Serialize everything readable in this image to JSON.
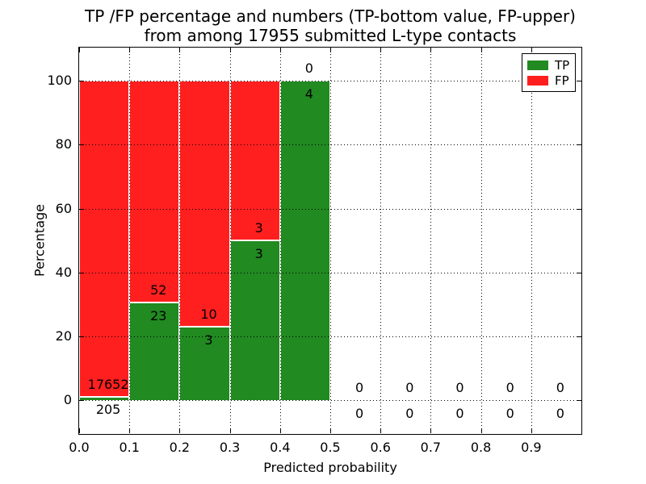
{
  "chart_data": {
    "type": "bar",
    "title_line1": "TP /FP percentage and numbers (TP-bottom value, FP-upper)",
    "title_line2": "from among 17955 submitted L-type contacts",
    "xlabel": "Predicted probability",
    "ylabel": "Percentage",
    "total_submitted": 17955,
    "xlim": [
      0.0,
      1.0
    ],
    "ylim": [
      -10.3,
      110.4
    ],
    "xtick_values": [
      0.0,
      0.1,
      0.2,
      0.3,
      0.4,
      0.5,
      0.6,
      0.7,
      0.8,
      0.9
    ],
    "xtick_labels": [
      "0.0",
      "0.1",
      "0.2",
      "0.3",
      "0.4",
      "0.5",
      "0.6",
      "0.7",
      "0.8",
      "0.9"
    ],
    "ytick_values": [
      0,
      20,
      40,
      60,
      80,
      100
    ],
    "ytick_labels": [
      "0",
      "20",
      "40",
      "60",
      "80",
      "100"
    ],
    "grid": true,
    "legend": {
      "position": "upper right",
      "entries": [
        {
          "label": "TP",
          "color": "#218a21"
        },
        {
          "label": "FP",
          "color": "#ff1f1f"
        }
      ]
    },
    "colors": {
      "tp": "#218a21",
      "fp": "#ff1f1f",
      "bar_edge": "#ffffff",
      "grid": "#000000",
      "frame": "#000000",
      "text": "#000000"
    },
    "annotation_offset_pct": 4,
    "bins": [
      {
        "x0": 0.0,
        "x1": 0.1,
        "tp_count": 205,
        "fp_count": 17652,
        "tp_pct": 1.15,
        "fp_pct": 98.85
      },
      {
        "x0": 0.1,
        "x1": 0.2,
        "tp_count": 23,
        "fp_count": 52,
        "tp_pct": 30.67,
        "fp_pct": 69.33
      },
      {
        "x0": 0.2,
        "x1": 0.3,
        "tp_count": 3,
        "fp_count": 10,
        "tp_pct": 23.08,
        "fp_pct": 76.92
      },
      {
        "x0": 0.3,
        "x1": 0.4,
        "tp_count": 3,
        "fp_count": 3,
        "tp_pct": 50.0,
        "fp_pct": 50.0
      },
      {
        "x0": 0.4,
        "x1": 0.5,
        "tp_count": 4,
        "fp_count": 0,
        "tp_pct": 100.0,
        "fp_pct": 0.0
      },
      {
        "x0": 0.5,
        "x1": 0.6,
        "tp_count": 0,
        "fp_count": 0,
        "tp_pct": 0.0,
        "fp_pct": 0.0
      },
      {
        "x0": 0.6,
        "x1": 0.7,
        "tp_count": 0,
        "fp_count": 0,
        "tp_pct": 0.0,
        "fp_pct": 0.0
      },
      {
        "x0": 0.7,
        "x1": 0.8,
        "tp_count": 0,
        "fp_count": 0,
        "tp_pct": 0.0,
        "fp_pct": 0.0
      },
      {
        "x0": 0.8,
        "x1": 0.9,
        "tp_count": 0,
        "fp_count": 0,
        "tp_pct": 0.0,
        "fp_pct": 0.0
      },
      {
        "x0": 0.9,
        "x1": 1.0,
        "tp_count": 0,
        "fp_count": 0,
        "tp_pct": 0.0,
        "fp_pct": 0.0
      }
    ]
  }
}
